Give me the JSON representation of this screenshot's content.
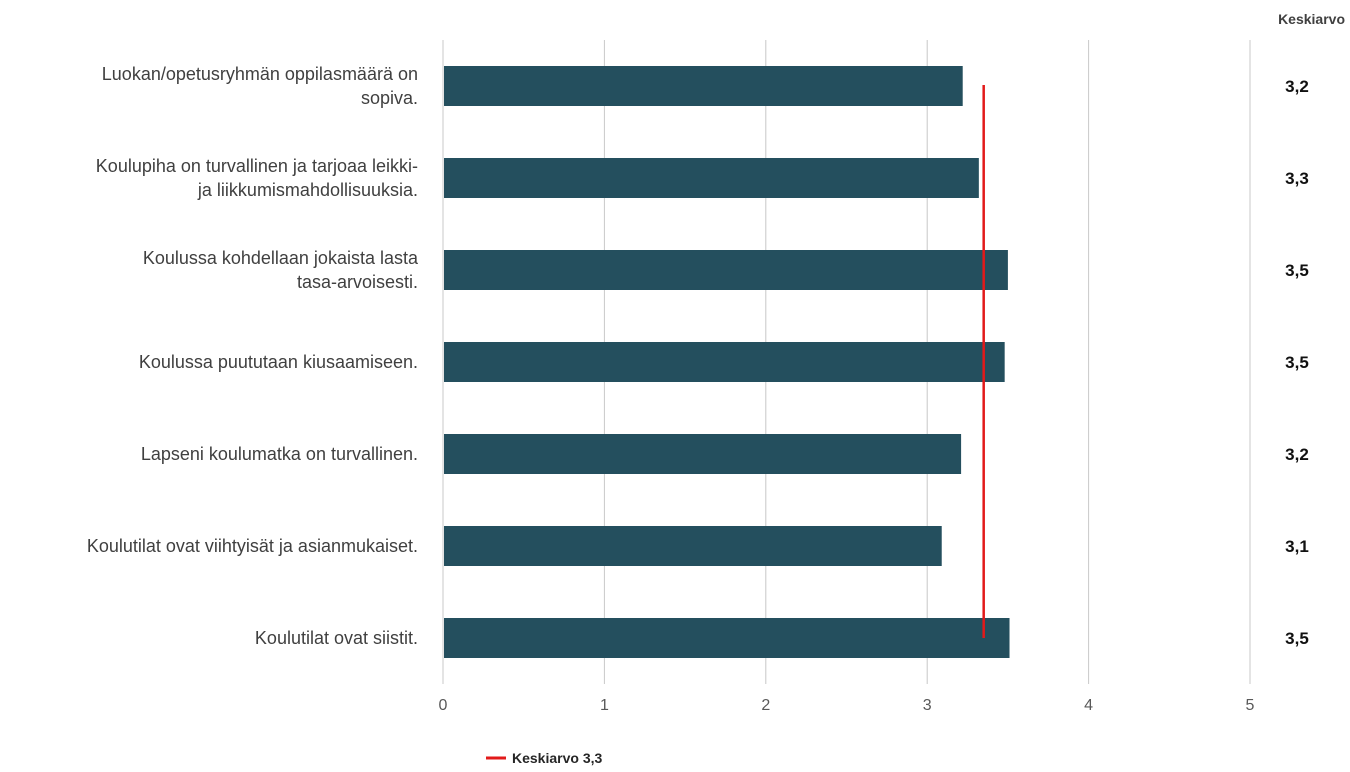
{
  "chart_data": {
    "type": "bar",
    "orientation": "horizontal",
    "categories": [
      [
        "Luokan/opetusryhmän oppilasmäärä on",
        "sopiva."
      ],
      [
        "Koulupiha on turvallinen ja tarjoaa leikki-",
        "ja liikkumismahdollisuuksia."
      ],
      [
        "Koulussa kohdellaan jokaista lasta",
        "tasa-arvoisesti."
      ],
      [
        "Koulussa puututaan kiusaamiseen."
      ],
      [
        "Lapseni koulumatka on turvallinen."
      ],
      [
        "Koulutilat ovat viihtyisät ja asianmukaiset."
      ],
      [
        "Koulutilat ovat siistit."
      ]
    ],
    "values": [
      3.22,
      3.32,
      3.5,
      3.48,
      3.21,
      3.09,
      3.51
    ],
    "value_labels": [
      "3,2",
      "3,3",
      "3,5",
      "3,5",
      "3,2",
      "3,1",
      "3,5"
    ],
    "value_column_header": "Keskiarvo",
    "xlim": [
      0,
      5
    ],
    "x_ticks": [
      "0",
      "1",
      "2",
      "3",
      "4",
      "5"
    ],
    "grid": true,
    "bar_color": "#244f5e",
    "reference_line": {
      "value": 3.35,
      "label": "Keskiarvo 3,3",
      "color": "#e21a1a"
    },
    "legend_position": "bottom-left"
  }
}
